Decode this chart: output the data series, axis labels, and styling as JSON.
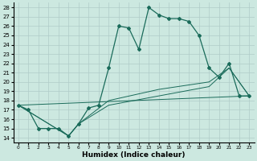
{
  "xlabel": "Humidex (Indice chaleur)",
  "xlim": [
    -0.5,
    23.5
  ],
  "ylim": [
    13.5,
    28.5
  ],
  "yticks": [
    14,
    15,
    16,
    17,
    18,
    19,
    20,
    21,
    22,
    23,
    24,
    25,
    26,
    27,
    28
  ],
  "xticks": [
    0,
    1,
    2,
    3,
    4,
    5,
    6,
    7,
    8,
    9,
    10,
    11,
    12,
    13,
    14,
    15,
    16,
    17,
    18,
    19,
    20,
    21,
    22,
    23
  ],
  "bg_color": "#cce8e0",
  "grid_color": "#b0ccc8",
  "line_color": "#1a6b5a",
  "main_x": [
    0,
    1,
    2,
    3,
    4,
    5,
    6,
    7,
    8,
    9,
    10,
    11,
    12,
    13,
    14,
    15,
    16,
    17,
    18,
    19,
    20,
    21,
    22,
    23
  ],
  "main_y": [
    17.5,
    17.0,
    15.0,
    15.0,
    15.0,
    14.2,
    15.5,
    17.2,
    17.5,
    21.5,
    26.0,
    25.8,
    23.5,
    28.0,
    27.2,
    26.8,
    26.8,
    26.5,
    25.0,
    21.5,
    20.5,
    22.0,
    18.5,
    18.5
  ],
  "line2_x": [
    0,
    5,
    6,
    9,
    14,
    19,
    21,
    23
  ],
  "line2_y": [
    17.5,
    14.2,
    15.5,
    17.5,
    18.5,
    19.5,
    21.5,
    18.5
  ],
  "line3_x": [
    0,
    5,
    6,
    9,
    14,
    19,
    21,
    23
  ],
  "line3_y": [
    17.5,
    14.2,
    15.5,
    18.0,
    19.2,
    20.0,
    21.5,
    18.5
  ],
  "line4_x": [
    0,
    23
  ],
  "line4_y": [
    17.5,
    18.5
  ]
}
